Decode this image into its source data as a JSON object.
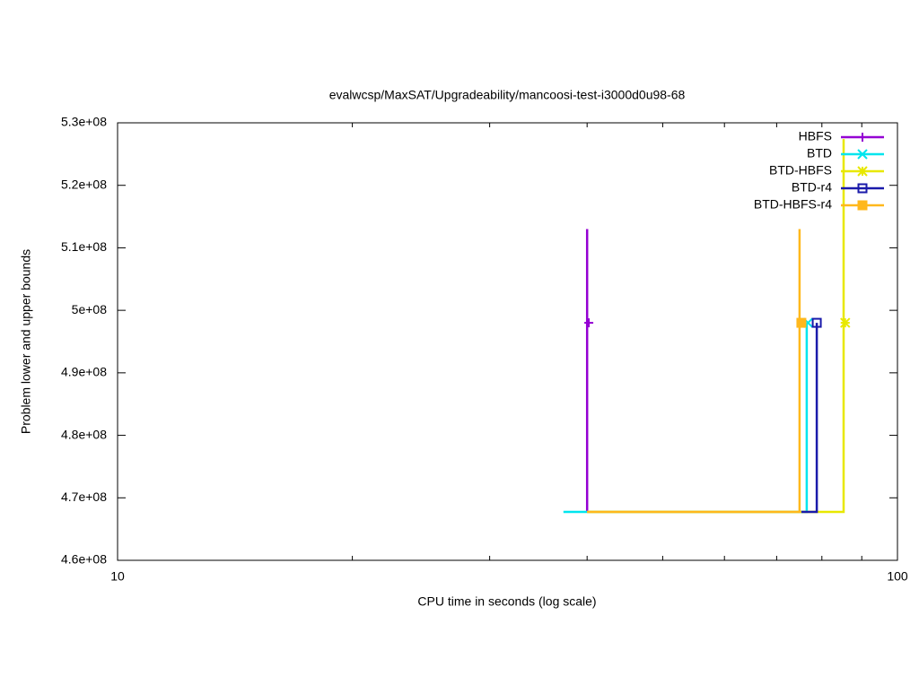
{
  "chart_data": {
    "type": "line",
    "title": "evalwcsp/MaxSAT/Upgradeability/mancoosi-test-i3000d0u98-68",
    "x_label": "CPU time in seconds (log scale)",
    "y_label": "Problem lower and upper bounds",
    "xscale": "log",
    "xlim": [
      10,
      100
    ],
    "xticks": [
      10,
      100
    ],
    "xminorticks": [
      20,
      30,
      40,
      50,
      60,
      70,
      80,
      90
    ],
    "ylim": [
      460000000,
      530000000
    ],
    "yticks": [
      {
        "value": 460000000,
        "label": "4.6e+08"
      },
      {
        "value": 470000000,
        "label": "4.7e+08"
      },
      {
        "value": 480000000,
        "label": "4.8e+08"
      },
      {
        "value": 490000000,
        "label": "4.9e+08"
      },
      {
        "value": 500000000,
        "label": "5e+08"
      },
      {
        "value": 510000000,
        "label": "5.1e+08"
      },
      {
        "value": 520000000,
        "label": "5.2e+08"
      },
      {
        "value": 530000000,
        "label": "5.3e+08"
      }
    ],
    "grid": false,
    "legend": "top-right",
    "series": [
      {
        "name": "HBFS",
        "color": "#9400d3",
        "point_type": "plus",
        "x": [
          40.0,
          40.0
        ],
        "values": [
          513000000,
          467750000
        ],
        "marker": {
          "x": 40.2,
          "y": 498000000
        }
      },
      {
        "name": "BTD",
        "color": "#00e5ee",
        "point_type": "cross",
        "x": [
          37.3,
          76.5,
          76.5
        ],
        "values": [
          467750000,
          467750000,
          498000000
        ],
        "marker": {
          "x": 76.8,
          "y": 498000000
        }
      },
      {
        "name": "BTD-HBFS",
        "color": "#e8e800",
        "point_type": "star",
        "x": [
          40.0,
          85.3,
          85.3
        ],
        "values": [
          467750000,
          467750000,
          527400000
        ],
        "marker": {
          "x": 85.7,
          "y": 498000000
        }
      },
      {
        "name": "BTD-r4",
        "color": "#1a1aaa",
        "point_type": "square-open",
        "x": [
          75.3,
          78.8,
          78.8
        ],
        "values": [
          467750000,
          467750000,
          498000000
        ],
        "marker": {
          "x": 78.8,
          "y": 498000000
        }
      },
      {
        "name": "BTD-HBFS-r4",
        "color": "#ffb81c",
        "point_type": "square-filled",
        "x": [
          40.0,
          74.9,
          74.9
        ],
        "values": [
          467750000,
          467750000,
          513000000
        ],
        "marker": {
          "x": 75.3,
          "y": 498000000
        }
      }
    ]
  }
}
